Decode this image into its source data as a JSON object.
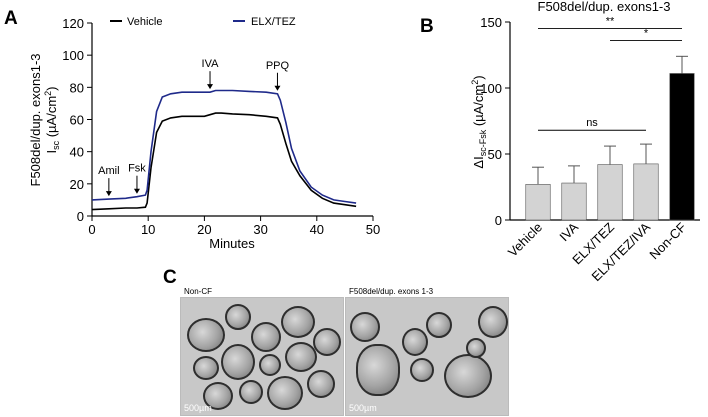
{
  "panels": {
    "a": "A",
    "b": "B",
    "c": "C"
  },
  "chart_data": [
    {
      "type": "line",
      "xlabel": "Minutes",
      "ylabel_line1": "F508del/dup. exons1-3",
      "ylabel_line2": "I",
      "ylabel_sub": "sc",
      "ylabel_unit": " (µA/cm",
      "ylabel_sup": "2",
      "ylabel_close": ")",
      "xlim": [
        0,
        50
      ],
      "ylim": [
        0,
        120
      ],
      "xticks": [
        "0",
        "10",
        "20",
        "30",
        "40",
        "50"
      ],
      "yticks": [
        "0",
        "20",
        "40",
        "60",
        "80",
        "100",
        "120"
      ],
      "legend": [
        "Vehicle",
        "ELX/TEZ"
      ],
      "series": [
        {
          "name": "Vehicle",
          "color": "#000000",
          "x": [
            0,
            3,
            6,
            8,
            9.5,
            9.8,
            10.5,
            11.5,
            12.5,
            14,
            16,
            18,
            20,
            21,
            22,
            23,
            25,
            28,
            31,
            33,
            33.5,
            34.5,
            35.5,
            37,
            39,
            41,
            43,
            45,
            47
          ],
          "y": [
            4,
            4.5,
            5,
            5,
            5.5,
            8,
            30,
            52,
            59,
            61,
            62,
            62,
            62,
            63,
            64,
            64,
            63.5,
            63,
            62,
            61,
            57,
            45,
            34,
            25,
            16,
            11,
            8,
            7,
            6
          ]
        },
        {
          "name": "ELX/TEZ",
          "color": "#1f2a8a",
          "x": [
            0,
            3,
            6,
            8,
            9.5,
            9.8,
            10.5,
            11.5,
            12.5,
            14,
            16,
            18,
            20,
            21,
            22,
            23,
            25,
            28,
            31,
            33,
            33.5,
            34.5,
            35.5,
            37,
            39,
            41,
            43,
            45,
            47
          ],
          "y": [
            10,
            10.5,
            11,
            12,
            13,
            16,
            40,
            65,
            74,
            76,
            77,
            77,
            77,
            77,
            78,
            78,
            78,
            77.5,
            77,
            76,
            72,
            58,
            42,
            28,
            18,
            13,
            10,
            9,
            8
          ]
        }
      ],
      "annotations": [
        {
          "text": "Amil",
          "x": 3
        },
        {
          "text": "Fsk",
          "x": 8
        },
        {
          "text": "IVA",
          "x": 21
        },
        {
          "text": "PPQ",
          "x": 33
        }
      ]
    },
    {
      "type": "bar",
      "title": "F508del/dup. exons1-3",
      "ylabel_delta": "ΔI",
      "ylabel_sub": "sc-Fsk",
      "ylabel_unit": " (µA/cm",
      "ylabel_sup": "2",
      "ylabel_close": ")",
      "ylim": [
        0,
        150
      ],
      "yticks": [
        "0",
        "50",
        "100",
        "150"
      ],
      "categories": [
        "Vehicle",
        "IVA",
        "ELX/TEZ",
        "ELX/TEZ/IVA",
        "Non-CF"
      ],
      "values": [
        27,
        28,
        42,
        42.5,
        111
      ],
      "errors": [
        13,
        13,
        14,
        15,
        13
      ],
      "colors": [
        "#d3d3d3",
        "#d3d3d3",
        "#d3d3d3",
        "#d3d3d3",
        "#000000"
      ],
      "significance": [
        {
          "from": 0,
          "to": 3,
          "y": 68,
          "label": "ns"
        },
        {
          "from": 2,
          "to": 4,
          "y": 136,
          "label": "*"
        },
        {
          "from": 0,
          "to": 4,
          "y": 145,
          "label": "**"
        }
      ]
    }
  ],
  "micrographs": [
    {
      "label": "Non-CF",
      "scale": "500µm"
    },
    {
      "label": "F508del/dup. exons 1-3",
      "scale": "500µm"
    }
  ]
}
